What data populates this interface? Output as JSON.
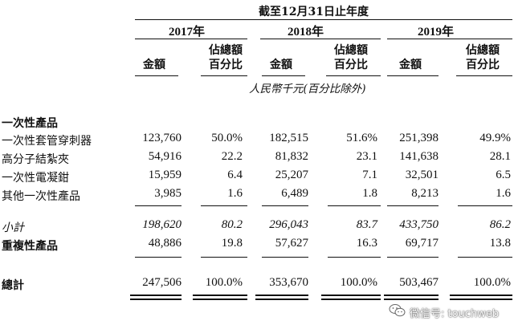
{
  "header": {
    "period": "截至12月31日止年度",
    "years": [
      "2017年",
      "2018年",
      "2019年"
    ],
    "col_amount": "金額",
    "col_pct_line1": "佔總額",
    "col_pct_line2": "百分比",
    "unit": "人民幣千元(百分比除外)"
  },
  "sections": {
    "disposable": "一次性產品",
    "reusable": "重複性產品",
    "total": "總計"
  },
  "rows": [
    {
      "label": "一次性套管穿刺器",
      "v": [
        "123,760",
        "50.0%",
        "182,515",
        "51.6%",
        "251,398",
        "49.9%"
      ]
    },
    {
      "label": "高分子結紮夾",
      "v": [
        "54,916",
        "22.2",
        "81,832",
        "23.1",
        "141,638",
        "28.1"
      ]
    },
    {
      "label": "一次性電凝鉗",
      "v": [
        "15,959",
        "6.4",
        "25,207",
        "7.1",
        "32,501",
        "6.5"
      ]
    },
    {
      "label": "其他一次性產品",
      "v": [
        "3,985",
        "1.6",
        "6,489",
        "1.8",
        "8,213",
        "1.6"
      ]
    }
  ],
  "subtotal": {
    "label": "小計",
    "v": [
      "198,620",
      "80.2",
      "296,043",
      "83.7",
      "433,750",
      "86.2"
    ]
  },
  "reusable_row": {
    "v": [
      "48,886",
      "19.8",
      "57,627",
      "16.3",
      "69,717",
      "13.8"
    ]
  },
  "total_row": {
    "v": [
      "247,506",
      "100.0%",
      "353,670",
      "100.0%",
      "503,467",
      "100.0%"
    ]
  },
  "watermark": {
    "icon": "wechat-icon",
    "text": "微信号: touchweb"
  }
}
